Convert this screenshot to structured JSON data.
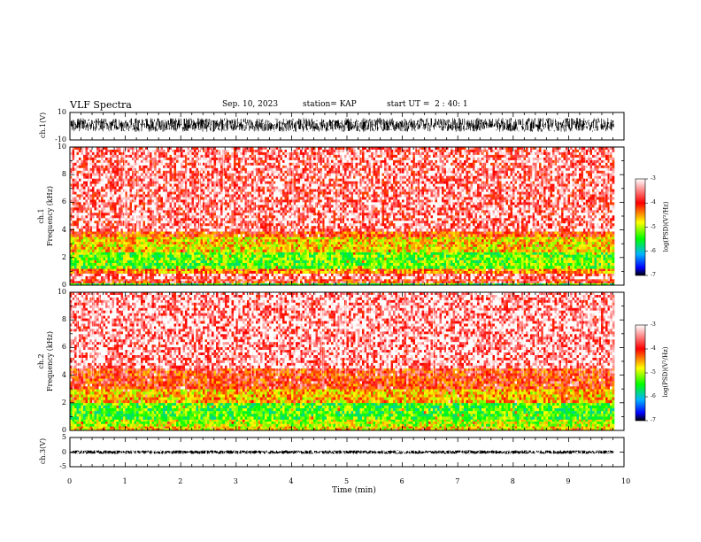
{
  "header": {
    "title": "VLF Spectra",
    "date": "Sep. 10, 2023",
    "station": "station= KAP",
    "start_ut": "start UT =  2 : 40: 1"
  },
  "chart_data": [
    {
      "type": "line",
      "name": "ch1-waveform",
      "ylabel": "ch.1(V)",
      "ylim": [
        -10,
        10
      ],
      "yticks": [
        "10",
        "-10"
      ],
      "xlim": [
        0,
        10
      ],
      "data_xmax": 9.82,
      "amplitude_band": [
        -4,
        6
      ]
    },
    {
      "type": "heatmap",
      "name": "ch1-spectrogram",
      "ylabel": "ch.1\nFrequency (kHz)",
      "ylim": [
        0,
        10
      ],
      "yticks": [
        "0",
        "2",
        "4",
        "6",
        "8",
        "10"
      ],
      "xlim": [
        0,
        10
      ],
      "data_xmax": 9.82,
      "bands_khz": [
        {
          "from": 0.0,
          "to": 0.15,
          "level": -5.0
        },
        {
          "from": 0.15,
          "to": 0.45,
          "level": -3.6
        },
        {
          "from": 0.45,
          "to": 0.85,
          "level": -3.3
        },
        {
          "from": 0.85,
          "to": 1.2,
          "level": -4.0
        },
        {
          "from": 1.2,
          "to": 2.4,
          "level": -4.8
        },
        {
          "from": 2.4,
          "to": 3.5,
          "level": -4.3
        },
        {
          "from": 3.5,
          "to": 3.9,
          "level": -3.8
        },
        {
          "from": 3.9,
          "to": 10.0,
          "level": -3.3
        }
      ]
    },
    {
      "type": "heatmap",
      "name": "ch2-spectrogram",
      "ylabel": "ch.2\nFrequency (kHz)",
      "ylim": [
        0,
        10
      ],
      "yticks": [
        "0",
        "2",
        "4",
        "6",
        "8",
        "10"
      ],
      "xlim": [
        0,
        10
      ],
      "data_xmax": 9.82,
      "bands_khz": [
        {
          "from": 0.0,
          "to": 0.3,
          "level": -4.3
        },
        {
          "from": 0.3,
          "to": 0.8,
          "level": -4.6
        },
        {
          "from": 0.8,
          "to": 2.0,
          "level": -4.9
        },
        {
          "from": 2.0,
          "to": 3.0,
          "level": -4.2
        },
        {
          "from": 3.0,
          "to": 4.5,
          "level": -3.7
        },
        {
          "from": 4.5,
          "to": 10.0,
          "level": -3.2
        }
      ]
    },
    {
      "type": "line",
      "name": "ch3-waveform",
      "ylabel": "ch.3(V)",
      "ylim": [
        -5,
        5
      ],
      "yticks": [
        "5",
        "0",
        "-5"
      ],
      "xlim": [
        0,
        10
      ],
      "data_xmax": 9.82,
      "amplitude_band": [
        -0.6,
        0.6
      ]
    }
  ],
  "colorbar": {
    "label": "log(PSD)(V²/Hz)",
    "ticks": [
      "-3",
      "-4",
      "-5",
      "-6",
      "-7"
    ],
    "range": [
      -7,
      -3
    ],
    "stops": [
      "#ffffff",
      "#ff0000",
      "#ffff00",
      "#00ff00",
      "#00b4ff",
      "#0000ff",
      "#000000"
    ]
  },
  "xaxis": {
    "label": "Time (min)",
    "ticks": [
      "0",
      "1",
      "2",
      "3",
      "4",
      "5",
      "6",
      "7",
      "8",
      "9",
      "10"
    ],
    "range": [
      0,
      10
    ]
  }
}
